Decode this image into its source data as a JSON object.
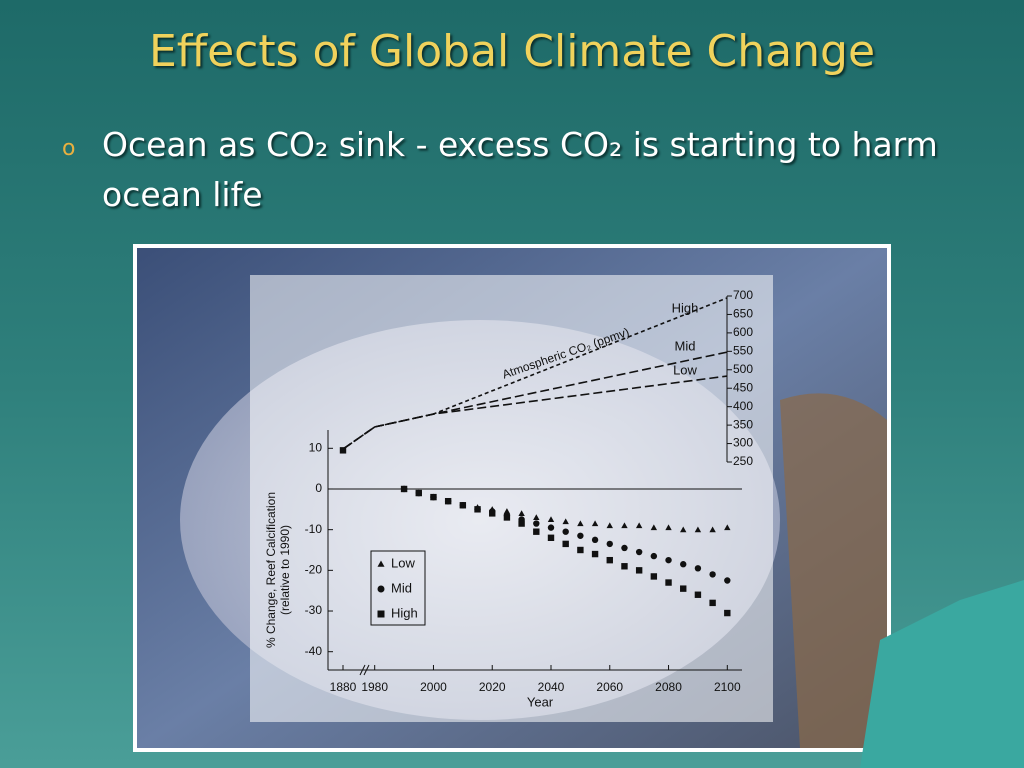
{
  "slide": {
    "title": "Effects of Global Climate Change",
    "bullet": "Ocean as CO₂ sink - excess CO₂ is starting to harm ocean life"
  },
  "chart_data": {
    "type": "scatter",
    "xlabel": "Year",
    "ylabel": [
      "% Change, Reef Calcification",
      "(relative to 1990)"
    ],
    "y2label": "Atmospheric CO₂ (ppmv)",
    "x": [
      1880,
      1990,
      1995,
      2000,
      2005,
      2010,
      2015,
      2020,
      2025,
      2030,
      2035,
      2040,
      2045,
      2050,
      2055,
      2060,
      2065,
      2070,
      2075,
      2080,
      2085,
      2090,
      2095,
      2100
    ],
    "series": [
      {
        "name": "Low",
        "marker": "triangle",
        "values": [
          null,
          0,
          -1,
          -2,
          -3,
          -4,
          -4.5,
          -5,
          -5.5,
          -6,
          -7,
          -7.5,
          -8,
          -8.5,
          -8.5,
          -9,
          -9,
          -9,
          -9.5,
          -9.5,
          -10,
          -10,
          -10,
          -9.5
        ]
      },
      {
        "name": "Mid",
        "marker": "circle",
        "values": [
          null,
          0,
          -1,
          -2,
          -3,
          -4,
          -5,
          -5.5,
          -6.5,
          -7.5,
          -8.5,
          -9.5,
          -10.5,
          -11.5,
          -12.5,
          -13.5,
          -14.5,
          -15.5,
          -16.5,
          -17.5,
          -18.5,
          -19.5,
          -21,
          -22.5
        ]
      },
      {
        "name": "High",
        "marker": "square",
        "values": [
          9.5,
          0,
          -1,
          -2,
          -3,
          -4,
          -5,
          -6,
          -7,
          -8.5,
          -10.5,
          -12,
          -13.5,
          -15,
          -16,
          -17.5,
          -19,
          -20,
          -21.5,
          -23,
          -24.5,
          -26,
          -28,
          -30.5
        ]
      }
    ],
    "co2_x": [
      1880,
      1980,
      2000,
      2100
    ],
    "co2_series": [
      {
        "name": "High",
        "axis": "y2",
        "values": [
          285,
          345,
          380,
          695
        ]
      },
      {
        "name": "Mid",
        "axis": "y2",
        "values": [
          285,
          345,
          380,
          548
        ]
      },
      {
        "name": "Low",
        "axis": "y2",
        "values": [
          285,
          345,
          380,
          483
        ]
      }
    ],
    "line_style": "dashed",
    "color": "#111111",
    "xlim": [
      1870,
      2105
    ],
    "xbreak": [
      1890,
      1975
    ],
    "xticks": [
      1880,
      1980,
      2000,
      2020,
      2040,
      2060,
      2080,
      2100
    ],
    "ylim": [
      -44.5,
      14.5
    ],
    "yticks": [
      10,
      0,
      -10,
      -20,
      -30,
      -40
    ],
    "y2lim": [
      250,
      700
    ],
    "y2ticks": [
      250,
      300,
      350,
      400,
      450,
      500,
      550,
      600,
      650,
      700
    ],
    "legend": "lower-left"
  }
}
